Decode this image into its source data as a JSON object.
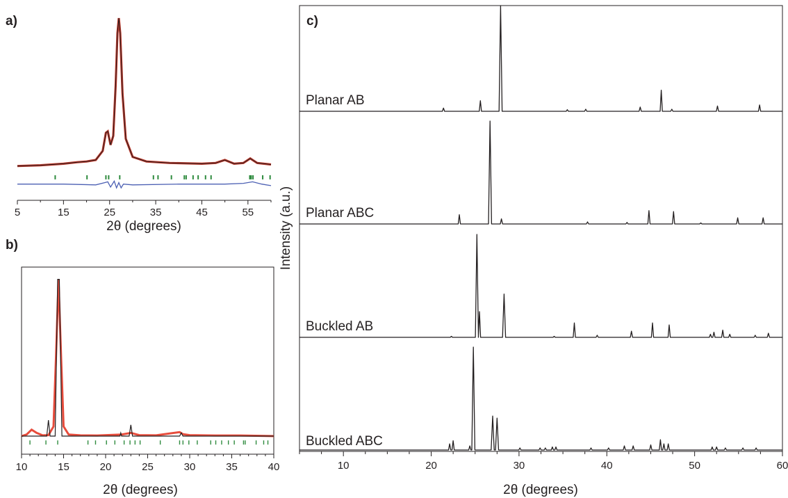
{
  "chart_data": [
    {
      "panel": "a)",
      "type": "line",
      "xlabel": "2θ (degrees)",
      "ylabel": "",
      "xlim": [
        5,
        60
      ],
      "ylim": [
        0,
        1.05
      ],
      "xticks": [
        5,
        15,
        25,
        35,
        45,
        55
      ],
      "xtick_labels": [
        "5",
        "15",
        "25",
        "35",
        "45",
        "55"
      ],
      "frame": "bottom-axis-only",
      "series": [
        {
          "role": "observed",
          "color": "#c0392b",
          "x": [
            5,
            10,
            15,
            18,
            20,
            22,
            23.5,
            24.2,
            24.6,
            25.2,
            25.8,
            26.3,
            26.7,
            27.0,
            27.3,
            27.8,
            28.5,
            30,
            33,
            38,
            45,
            48,
            50,
            52,
            54,
            55.5,
            57,
            60
          ],
          "y": [
            0.02,
            0.025,
            0.035,
            0.045,
            0.05,
            0.06,
            0.12,
            0.24,
            0.25,
            0.16,
            0.22,
            0.55,
            0.9,
            1.0,
            0.9,
            0.5,
            0.2,
            0.08,
            0.05,
            0.04,
            0.035,
            0.04,
            0.06,
            0.035,
            0.04,
            0.07,
            0.04,
            0.03
          ]
        },
        {
          "role": "calculated",
          "color": "#231f20",
          "x": [
            5,
            10,
            15,
            18,
            20,
            22,
            23.5,
            24.2,
            24.6,
            25.2,
            25.8,
            26.3,
            26.7,
            27.0,
            27.3,
            27.8,
            28.5,
            30,
            33,
            38,
            45,
            48,
            50,
            52,
            54,
            55.5,
            57,
            60
          ],
          "y": [
            0.02,
            0.025,
            0.035,
            0.045,
            0.05,
            0.06,
            0.12,
            0.24,
            0.25,
            0.16,
            0.22,
            0.55,
            0.9,
            1.0,
            0.9,
            0.5,
            0.2,
            0.08,
            0.05,
            0.04,
            0.035,
            0.04,
            0.06,
            0.035,
            0.04,
            0.07,
            0.04,
            0.03
          ]
        },
        {
          "role": "difference",
          "color": "#4b5fb3",
          "x": [
            5,
            15,
            22,
            24,
            24.6,
            25.2,
            26,
            26.5,
            27,
            27.5,
            28,
            30,
            40,
            50,
            54,
            56,
            58,
            60
          ],
          "y": [
            -0.1,
            -0.1,
            -0.105,
            -0.09,
            -0.085,
            -0.12,
            -0.08,
            -0.125,
            -0.09,
            -0.125,
            -0.1,
            -0.105,
            -0.1,
            -0.1,
            -0.095,
            -0.085,
            -0.1,
            -0.11
          ]
        }
      ],
      "reflection_ticks": {
        "color": "#2e8b3e",
        "level": -0.055,
        "x": [
          13.2,
          20.1,
          24.2,
          24.8,
          27.2,
          34.5,
          35.5,
          38.4,
          41.2,
          41.6,
          43.1,
          44.2,
          45.8,
          47,
          55.4,
          55.7,
          56.1,
          58.2,
          59.8
        ]
      }
    },
    {
      "panel": "b)",
      "type": "line",
      "xlabel": "2θ (degrees)",
      "ylabel": "",
      "xlim": [
        10,
        40
      ],
      "ylim": [
        0,
        1.05
      ],
      "xticks": [
        10,
        15,
        20,
        25,
        30,
        35,
        40
      ],
      "xtick_labels": [
        "10",
        "15",
        "20",
        "25",
        "30",
        "35",
        "40"
      ],
      "frame": "box",
      "series": [
        {
          "role": "observed",
          "color": "#e74c3c",
          "x": [
            10,
            10.6,
            11.2,
            11.8,
            12.5,
            13.2,
            13.8,
            14.1,
            14.4,
            14.7,
            15.0,
            15.6,
            17,
            19,
            21.9,
            23,
            24,
            26,
            28.8,
            29.2,
            30,
            33,
            36,
            40
          ],
          "y": [
            0.0,
            0.01,
            0.04,
            0.02,
            0.005,
            0.006,
            0.06,
            0.5,
            0.98,
            0.5,
            0.06,
            0.01,
            0.005,
            0.004,
            0.01,
            0.02,
            0.006,
            0.005,
            0.025,
            0.012,
            0.006,
            0.004,
            0.004,
            0.0
          ]
        },
        {
          "role": "calculated",
          "color": "#231f20",
          "x": [
            10,
            13.0,
            13.2,
            13.4,
            14.0,
            14.3,
            14.5,
            14.8,
            16,
            21.7,
            21.8,
            21.9,
            22.8,
            23.0,
            23.2,
            28.8,
            29.0,
            29.2,
            40
          ],
          "y": [
            0.0,
            0.0,
            0.1,
            0.0,
            0.0,
            0.98,
            0.98,
            0.0,
            0.0,
            0.0,
            0.02,
            0.0,
            0.0,
            0.07,
            0.0,
            0.0,
            0.02,
            0.0,
            0.0
          ]
        }
      ],
      "reflection_ticks": {
        "color": "#2e8b3e",
        "level": -0.04,
        "x": [
          11,
          12.9,
          14.3,
          17.9,
          18.8,
          20.1,
          21.1,
          22.2,
          22.9,
          23.5,
          24.1,
          26.5,
          28.8,
          29.2,
          29.9,
          30.9,
          32.5,
          33.1,
          33.8,
          34.6,
          35.3,
          36.4,
          36.6,
          37.9,
          38.8,
          39.3
        ]
      }
    },
    {
      "panel": "c)",
      "type": "line",
      "xlabel": "2θ (degrees)",
      "ylabel": "Intensity (a.u.)",
      "xlim": [
        5,
        60
      ],
      "ylim": [
        0,
        1
      ],
      "xticks": [
        10,
        20,
        30,
        40,
        50,
        60
      ],
      "xtick_labels": [
        "10",
        "20",
        "30",
        "40",
        "50",
        "60"
      ],
      "frame": "box",
      "stacked": true,
      "series": [
        {
          "name": "Planar AB",
          "color": "#231f20",
          "peaks": [
            [
              21.4,
              0.03
            ],
            [
              25.6,
              0.1
            ],
            [
              27.9,
              1.05
            ],
            [
              35.5,
              0.015
            ],
            [
              37.6,
              0.02
            ],
            [
              43.8,
              0.04
            ],
            [
              46.2,
              0.2
            ],
            [
              47.4,
              0.02
            ],
            [
              52.6,
              0.05
            ],
            [
              57.4,
              0.06
            ]
          ]
        },
        {
          "name": "Planar ABC",
          "color": "#231f20",
          "peaks": [
            [
              23.2,
              0.09
            ],
            [
              26.7,
              1.0
            ],
            [
              28.0,
              0.05
            ],
            [
              37.8,
              0.02
            ],
            [
              42.3,
              0.015
            ],
            [
              44.8,
              0.13
            ],
            [
              47.6,
              0.12
            ],
            [
              50.7,
              0.01
            ],
            [
              54.9,
              0.06
            ],
            [
              57.8,
              0.06
            ]
          ]
        },
        {
          "name": "Buckled AB",
          "color": "#231f20",
          "peaks": [
            [
              22.3,
              0.01
            ],
            [
              25.2,
              1.0
            ],
            [
              25.5,
              0.25
            ],
            [
              28.3,
              0.42
            ],
            [
              34,
              0.01
            ],
            [
              36.3,
              0.14
            ],
            [
              38.9,
              0.02
            ],
            [
              42.8,
              0.06
            ],
            [
              45.2,
              0.14
            ],
            [
              47.1,
              0.12
            ],
            [
              51.8,
              0.03
            ],
            [
              52.2,
              0.05
            ],
            [
              53.2,
              0.07
            ],
            [
              54,
              0.03
            ],
            [
              56.9,
              0.02
            ],
            [
              58.4,
              0.04
            ]
          ]
        },
        {
          "name": "Buckled ABC",
          "color": "#231f20",
          "peaks": [
            [
              22.1,
              0.06
            ],
            [
              22.5,
              0.09
            ],
            [
              24.4,
              0.04
            ],
            [
              24.8,
              1.0
            ],
            [
              27.0,
              0.33
            ],
            [
              27.5,
              0.31
            ],
            [
              30.1,
              0.02
            ],
            [
              32.4,
              0.02
            ],
            [
              33.0,
              0.02
            ],
            [
              33.8,
              0.03
            ],
            [
              34.2,
              0.03
            ],
            [
              38.2,
              0.02
            ],
            [
              40.2,
              0.02
            ],
            [
              42,
              0.04
            ],
            [
              43,
              0.04
            ],
            [
              45,
              0.05
            ],
            [
              46.1,
              0.1
            ],
            [
              46.5,
              0.06
            ],
            [
              47,
              0.06
            ],
            [
              52,
              0.03
            ],
            [
              52.5,
              0.03
            ],
            [
              53.5,
              0.02
            ],
            [
              55.5,
              0.02
            ],
            [
              57,
              0.02
            ]
          ]
        }
      ]
    }
  ]
}
